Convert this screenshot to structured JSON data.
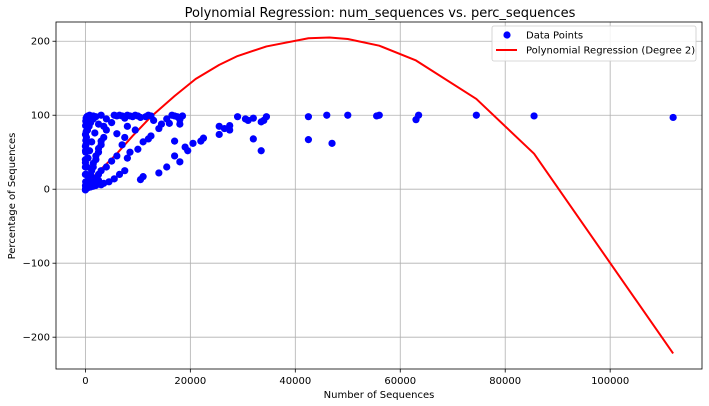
{
  "chart_data": {
    "type": "scatter",
    "title": "Polynomial Regression: num_sequences vs. perc_sequences",
    "xlabel": "Number of Sequences",
    "ylabel": "Percentage of Sequences",
    "xlim": [
      -5600,
      117500
    ],
    "ylim": [
      -243,
      226
    ],
    "x_ticks": [
      0,
      20000,
      40000,
      60000,
      80000,
      100000
    ],
    "x_tick_labels": [
      "0",
      "20000",
      "40000",
      "60000",
      "80000",
      "100000"
    ],
    "y_ticks": [
      -200,
      -100,
      0,
      100,
      200
    ],
    "y_tick_labels": [
      "−200",
      "−100",
      "0",
      "100",
      "200"
    ],
    "grid": true,
    "legend_position": "top-right",
    "series": [
      {
        "name": "Data Points",
        "kind": "scatter",
        "color": "#0000ff",
        "x": [
          29000,
          31000,
          32000,
          34000,
          34500,
          42500,
          46000,
          50000,
          55500,
          56000,
          63000,
          63500,
          74500,
          85500,
          112000,
          25500,
          26500,
          27500,
          25500,
          27500,
          30500,
          33500,
          32000,
          33500,
          42500,
          47000,
          17000,
          17500,
          18000,
          18500,
          16500,
          15500,
          14500,
          13000,
          12500,
          12000,
          11500,
          10500,
          10000,
          9500,
          9000,
          8500,
          8000,
          7500,
          7000,
          6500,
          6000,
          5500,
          17000,
          18000,
          19000,
          19500,
          20500,
          22000,
          22500,
          16000,
          14000,
          12500,
          12000,
          11000,
          10000,
          9500,
          18000,
          17000,
          15500,
          14000,
          11000,
          10500,
          8500,
          8000,
          7500,
          6500,
          5500,
          4500,
          3500,
          3000,
          2500,
          2000,
          1500,
          1000,
          500,
          8000,
          7500,
          7000,
          6000,
          5000,
          4000,
          3000,
          2500,
          2000,
          1500,
          1000,
          500,
          6000,
          5000,
          4000,
          3500,
          3000,
          2500,
          2000,
          1500,
          1000,
          500,
          300,
          200,
          100,
          50,
          4000,
          3500,
          3000,
          2500,
          2000,
          1500,
          1200,
          800,
          500,
          300,
          150,
          50,
          3000,
          2000,
          1500,
          1000,
          700,
          400,
          200,
          100,
          50,
          0,
          2500,
          1800,
          1200,
          800,
          500,
          300,
          150,
          60,
          20,
          0,
          1500,
          1000,
          600,
          300,
          150,
          80,
          30,
          10,
          0,
          800,
          500,
          300,
          150,
          80,
          40,
          15,
          5,
          0
        ],
        "y": [
          98,
          93,
          96,
          93,
          98,
          98,
          100,
          100,
          99,
          100,
          94,
          100,
          100,
          99,
          97,
          85,
          82,
          86,
          74,
          80,
          95,
          91,
          68,
          52,
          67,
          62,
          99,
          98,
          94,
          99,
          100,
          95,
          88,
          93,
          99,
          100,
          98,
          97,
          99,
          100,
          98,
          99,
          100,
          96,
          99,
          100,
          99,
          100,
          65,
          37,
          57,
          52,
          62,
          65,
          69,
          89,
          82,
          72,
          68,
          64,
          54,
          80,
          88,
          45,
          30,
          22,
          17,
          13,
          50,
          42,
          25,
          20,
          14,
          10,
          8,
          6,
          12,
          5,
          4,
          3,
          2,
          85,
          70,
          60,
          45,
          38,
          30,
          25,
          20,
          15,
          10,
          7,
          4,
          75,
          90,
          80,
          70,
          60,
          50,
          40,
          30,
          20,
          10,
          8,
          5,
          3,
          1,
          95,
          85,
          65,
          55,
          45,
          35,
          25,
          18,
          12,
          6,
          2,
          0,
          100,
          98,
          95,
          90,
          85,
          80,
          70,
          60,
          50,
          40,
          88,
          76,
          64,
          52,
          42,
          30,
          20,
          10,
          5,
          -1,
          99,
          97,
          92,
          86,
          78,
          66,
          52,
          36,
          20,
          100,
          99,
          98,
          96,
          92,
          86,
          74,
          58,
          30
        ]
      },
      {
        "name": "Polynomial Regression (Degree 2)",
        "kind": "line",
        "color": "#ff0000",
        "x": [
          0,
          100,
          300,
          800,
          1500,
          2500,
          4000,
          6000,
          9000,
          12500,
          17000,
          21000,
          25500,
          29000,
          34500,
          42500,
          46500,
          50000,
          56000,
          63000,
          74500,
          85500,
          112000
        ],
        "y": [
          7,
          8,
          10,
          12,
          16,
          24,
          34,
          48,
          72,
          98,
          126,
          149,
          168,
          180,
          193,
          204,
          205,
          203,
          194,
          174,
          122,
          48,
          -222
        ]
      }
    ]
  }
}
